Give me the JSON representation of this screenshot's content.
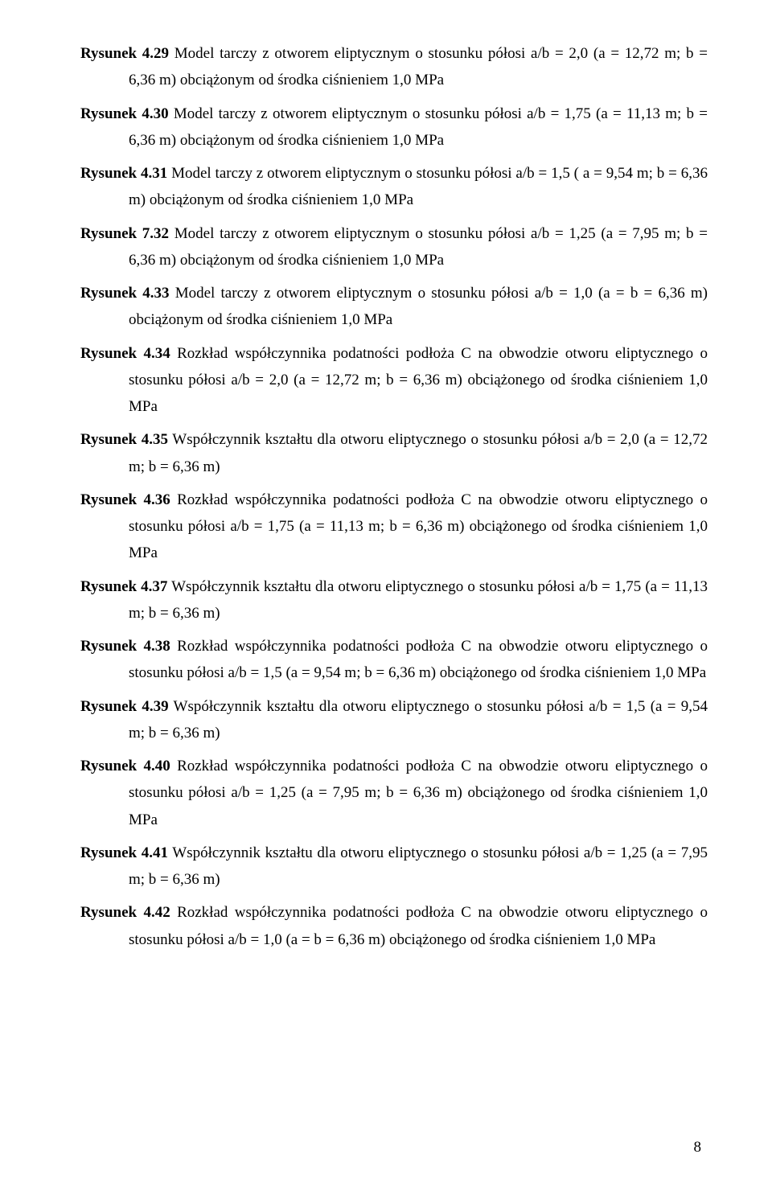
{
  "entries": [
    {
      "label": "Rysunek 4.29",
      "text": " Model tarczy z otworem eliptycznym o stosunku półosi a/b = 2,0 (a = 12,72 m; b = 6,36 m) obciążonym od środka ciśnieniem 1,0 MPa"
    },
    {
      "label": "Rysunek 4.30",
      "text": " Model tarczy z otworem eliptycznym o stosunku półosi a/b = 1,75 (a = 11,13 m; b = 6,36 m) obciążonym od środka ciśnieniem 1,0 MPa"
    },
    {
      "label": "Rysunek 4.31",
      "text": " Model tarczy z otworem eliptycznym o stosunku półosi a/b = 1,5 ( a = 9,54 m; b = 6,36 m) obciążonym od środka ciśnieniem 1,0 MPa"
    },
    {
      "label": "Rysunek 7.32",
      "text": " Model tarczy z otworem eliptycznym o stosunku półosi a/b = 1,25 (a = 7,95 m; b = 6,36 m) obciążonym od środka ciśnieniem 1,0 MPa"
    },
    {
      "label": "Rysunek 4.33",
      "text": " Model tarczy z otworem eliptycznym o stosunku półosi a/b = 1,0 (a = b = 6,36 m) obciążonym od środka ciśnieniem 1,0 MPa"
    },
    {
      "label": "Rysunek 4.34",
      "text": " Rozkład  współczynnika podatności podłoża C na obwodzie otworu eliptycznego o stosunku półosi a/b = 2,0 (a = 12,72 m;  b = 6,36 m) obciążonego od środka ciśnieniem 1,0 MPa"
    },
    {
      "label": "Rysunek 4.35",
      "text": " Współczynnik kształtu dla otworu eliptycznego o stosunku półosi a/b = 2,0 (a = 12,72 m;  b = 6,36 m)"
    },
    {
      "label": "Rysunek 4.36",
      "text": " Rozkład  współczynnika podatności podłoża C na obwodzie otworu eliptycznego o stosunku półosi a/b = 1,75 (a = 11,13 m;  b = 6,36 m) obciążonego od środka ciśnieniem 1,0 MPa"
    },
    {
      "label": "Rysunek 4.37",
      "text": " Współczynnik kształtu dla otworu eliptycznego o stosunku półosi a/b = 1,75 (a = 11,13 m;  b = 6,36 m)"
    },
    {
      "label": "Rysunek 4.38",
      "text": " Rozkład współczynnika podatności podłoża C na obwodzie otworu eliptycznego o stosunku półosi a/b = 1,5 (a = 9,54 m;  b = 6,36 m) obciążonego od środka ciśnieniem 1,0 MPa"
    },
    {
      "label": "Rysunek 4.39",
      "text": " Współczynnik kształtu dla otworu eliptycznego o stosunku półosi a/b = 1,5 (a = 9,54 m;  b = 6,36 m)"
    },
    {
      "label": "Rysunek 4.40",
      "text": " Rozkład  współczynnika podatności podłoża C na obwodzie otworu eliptycznego o stosunku półosi a/b = 1,25 (a = 7,95 m;  b = 6,36 m) obciążonego od środka ciśnieniem 1,0 MPa"
    },
    {
      "label": "Rysunek 4.41",
      "text": " Współczynnik kształtu dla otworu eliptycznego o stosunku półosi a/b = 1,25 (a = 7,95 m;  b = 6,36 m)"
    },
    {
      "label": "Rysunek 4.42",
      "text": " Rozkład współczynnika podatności podłoża C na obwodzie otworu eliptycznego o stosunku półosi a/b = 1,0 (a = b = 6,36 m) obciążonego od środka ciśnieniem 1,0 MPa"
    }
  ],
  "page_number": "8"
}
